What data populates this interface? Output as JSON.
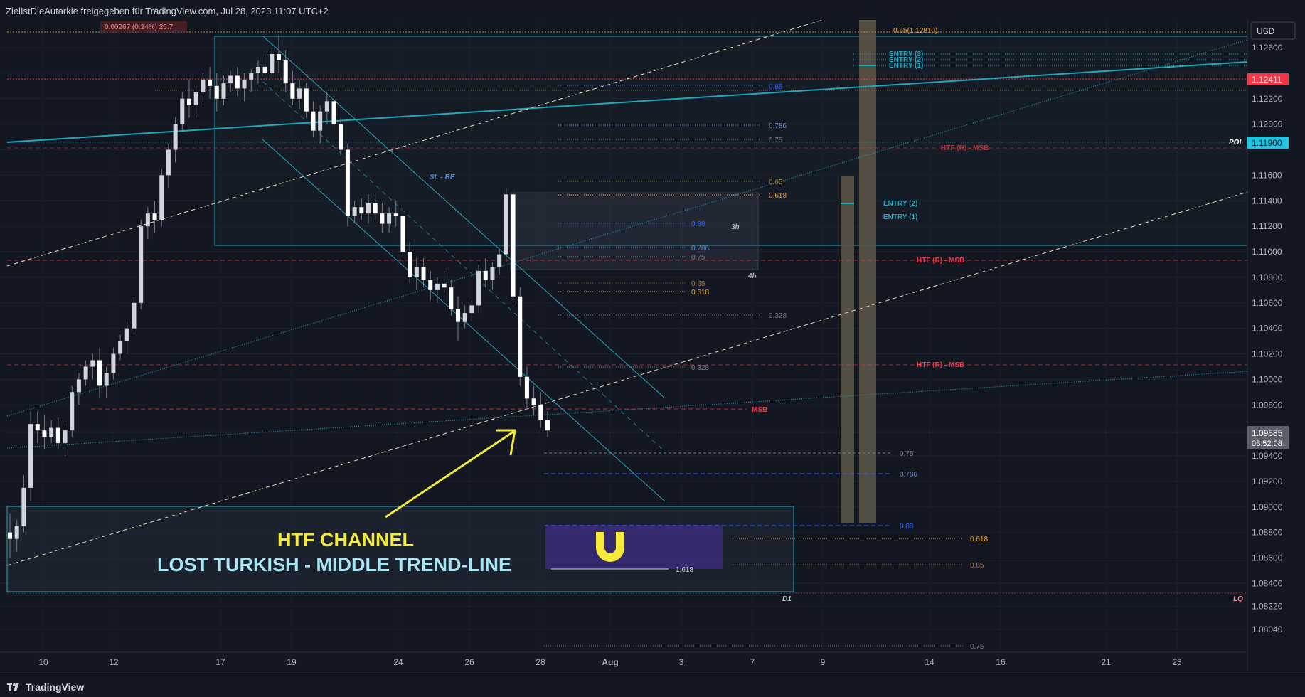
{
  "header": {
    "title": "ZielIstDieAutarkie freigegeben für TradingView.com, Jul 28, 2023 11:07 UTC+2",
    "measure": "0.00267 (0.24%) 26.7"
  },
  "price_axis": {
    "currency": "USD",
    "ticks": [
      "1.12600",
      "1.12400",
      "1.12200",
      "1.12000",
      "1.11800",
      "1.11600",
      "1.11400",
      "1.11200",
      "1.11000",
      "1.10800",
      "1.10600",
      "1.10400",
      "1.10200",
      "1.10000",
      "1.09800",
      "1.09600",
      "1.09400",
      "1.09200",
      "1.09000",
      "1.08800",
      "1.08600",
      "1.08400",
      "1.08220",
      "1.08040"
    ],
    "red_label": "1.12411",
    "poi_label": "1.11900",
    "poi_text": "POI",
    "current_price": "1.09585",
    "countdown": "03:52:08"
  },
  "time_axis": {
    "ticks": [
      "10",
      "12",
      "17",
      "19",
      "24",
      "26",
      "28",
      "Aug",
      "3",
      "7",
      "9",
      "14",
      "16",
      "21",
      "23"
    ]
  },
  "annotations": {
    "fib_top": "0.65(1.12810)",
    "entry_3": "ENTRY (3)",
    "entry_2_top": "ENTRY (2)",
    "entry_1_top": "ENTRY (1)",
    "entry_2": "ENTRY (2)",
    "entry_1": "ENTRY (1)",
    "sl_be": "SL - BE",
    "htf_msb_1": "HTF (R) - MSB",
    "htf_msb_2": "HTF (R) - MSB",
    "htf_msb_3": "HTF (R) - MSB",
    "msb": "MSB",
    "label_3h": "3h",
    "label_4h": "4h",
    "label_d1": "D1",
    "label_lq": "LQ",
    "fib_088_a": "0.88",
    "fib_0786_a": "0.786",
    "fib_075_a": "0.75",
    "fib_065_a": "0.65",
    "fib_0618_a": "0.618",
    "fib_088_b": "0.88",
    "fib_0786_b": "0.786",
    "fib_075_b": "0.75",
    "fib_065_b": "0.65",
    "fib_0618_b": "0.618",
    "fib_0328_a": "0.328",
    "fib_0328_b": "0.328",
    "fib_075_c": "0.75",
    "fib_0786_c": "0.786",
    "fib_088_c": "0.88",
    "fib_0618_c": "0.618",
    "fib_065_c": "0.65",
    "fib_1618": "1.618",
    "fib_075_d": "0.75",
    "headline_1": "HTF CHANNEL",
    "headline_2": "LOST TURKISH - MIDDLE TREND-LINE"
  },
  "footer": {
    "brand": "TradingView"
  },
  "colors": {
    "background": "#131722",
    "up_candle": "#d1d4dc",
    "down_candle": "#ffffff",
    "red": "#f23645",
    "teal": "#22a7bd",
    "orange": "#f7a325",
    "blue": "#2962ff",
    "yellow": "#f5e93a",
    "purple": "#3a2b7a"
  },
  "chart_data": {
    "type": "candlestick",
    "symbol_currency": "USD",
    "price_range": [
      1.0795,
      1.128
    ],
    "x_tick_labels": [
      "10",
      "12",
      "17",
      "19",
      "24",
      "26",
      "28",
      "Aug",
      "3",
      "7",
      "9",
      "14",
      "16",
      "21",
      "23"
    ],
    "key_levels": {
      "red_dotted": 1.12411,
      "poi": 1.119,
      "current": 1.09585,
      "fib_065_top": 1.1281
    },
    "candles": [
      [
        1.088,
        1.0895,
        1.086,
        1.0875
      ],
      [
        1.0875,
        1.089,
        1.0865,
        1.0885
      ],
      [
        1.0885,
        1.0925,
        1.088,
        1.0915
      ],
      [
        1.0915,
        1.0975,
        1.0905,
        1.0965
      ],
      [
        1.0965,
        1.0975,
        1.095,
        1.096
      ],
      [
        1.096,
        1.0972,
        1.0945,
        1.0955
      ],
      [
        1.0955,
        1.0968,
        1.095,
        1.0962
      ],
      [
        1.0962,
        1.097,
        1.0945,
        1.095
      ],
      [
        1.095,
        1.0965,
        1.094,
        1.096
      ],
      [
        1.096,
        1.0995,
        1.0955,
        1.099
      ],
      [
        1.099,
        1.1005,
        1.098,
        1.1
      ],
      [
        1.1,
        1.1015,
        1.0995,
        1.101
      ],
      [
        1.101,
        1.102,
        1.1,
        1.1015
      ],
      [
        1.1015,
        1.1025,
        1.0985,
        1.0995
      ],
      [
        1.0995,
        1.101,
        1.0985,
        1.1005
      ],
      [
        1.1005,
        1.1025,
        1.1,
        1.102
      ],
      [
        1.102,
        1.1035,
        1.1015,
        1.103
      ],
      [
        1.103,
        1.1045,
        1.102,
        1.104
      ],
      [
        1.104,
        1.1065,
        1.1035,
        1.106
      ],
      [
        1.106,
        1.1125,
        1.1055,
        1.112
      ],
      [
        1.112,
        1.1135,
        1.111,
        1.113
      ],
      [
        1.113,
        1.114,
        1.1115,
        1.1125
      ],
      [
        1.1125,
        1.1165,
        1.112,
        1.116
      ],
      [
        1.116,
        1.1185,
        1.115,
        1.118
      ],
      [
        1.118,
        1.1205,
        1.117,
        1.12
      ],
      [
        1.12,
        1.1225,
        1.1195,
        1.122
      ],
      [
        1.122,
        1.1235,
        1.1205,
        1.1215
      ],
      [
        1.1215,
        1.123,
        1.1205,
        1.1225
      ],
      [
        1.1225,
        1.124,
        1.1215,
        1.1235
      ],
      [
        1.1235,
        1.1245,
        1.122,
        1.123
      ],
      [
        1.123,
        1.124,
        1.121,
        1.122
      ],
      [
        1.122,
        1.1238,
        1.1215,
        1.1232
      ],
      [
        1.1232,
        1.1242,
        1.1225,
        1.1238
      ],
      [
        1.1238,
        1.1245,
        1.1222,
        1.1228
      ],
      [
        1.1228,
        1.124,
        1.1218,
        1.1235
      ],
      [
        1.1235,
        1.1243,
        1.1225,
        1.124
      ],
      [
        1.124,
        1.125,
        1.1232,
        1.1245
      ],
      [
        1.1245,
        1.1255,
        1.1235,
        1.124
      ],
      [
        1.124,
        1.126,
        1.1235,
        1.1255
      ],
      [
        1.1255,
        1.127,
        1.124,
        1.125
      ],
      [
        1.125,
        1.1258,
        1.1225,
        1.1232
      ],
      [
        1.1232,
        1.1242,
        1.1215,
        1.122
      ],
      [
        1.122,
        1.1235,
        1.1212,
        1.1228
      ],
      [
        1.1228,
        1.1232,
        1.1205,
        1.121
      ],
      [
        1.121,
        1.1218,
        1.119,
        1.1195
      ],
      [
        1.1195,
        1.1215,
        1.1185,
        1.121
      ],
      [
        1.121,
        1.1225,
        1.12,
        1.1218
      ],
      [
        1.1218,
        1.1222,
        1.1195,
        1.12
      ],
      [
        1.12,
        1.1205,
        1.1175,
        1.118
      ],
      [
        1.118,
        1.1185,
        1.112,
        1.1128
      ],
      [
        1.1128,
        1.114,
        1.1122,
        1.1135
      ],
      [
        1.1135,
        1.1142,
        1.1125,
        1.113
      ],
      [
        1.113,
        1.1145,
        1.1122,
        1.1138
      ],
      [
        1.1138,
        1.1145,
        1.1125,
        1.113
      ],
      [
        1.113,
        1.1138,
        1.1115,
        1.1122
      ],
      [
        1.1122,
        1.1135,
        1.1115,
        1.113
      ],
      [
        1.113,
        1.114,
        1.112,
        1.1128
      ],
      [
        1.1128,
        1.1135,
        1.1095,
        1.11
      ],
      [
        1.11,
        1.1108,
        1.1075,
        1.108
      ],
      [
        1.108,
        1.1095,
        1.107,
        1.1088
      ],
      [
        1.1088,
        1.1095,
        1.1072,
        1.1078
      ],
      [
        1.1078,
        1.1085,
        1.1062,
        1.107
      ],
      [
        1.107,
        1.108,
        1.106,
        1.1075
      ],
      [
        1.1075,
        1.1085,
        1.1068,
        1.1072
      ],
      [
        1.1072,
        1.1078,
        1.105,
        1.1055
      ],
      [
        1.1055,
        1.1065,
        1.103,
        1.1045
      ],
      [
        1.1045,
        1.1058,
        1.104,
        1.1052
      ],
      [
        1.1052,
        1.1062,
        1.1045,
        1.1058
      ],
      [
        1.1058,
        1.109,
        1.1052,
        1.1085
      ],
      [
        1.1085,
        1.1095,
        1.1072,
        1.1078
      ],
      [
        1.1078,
        1.1092,
        1.107,
        1.1088
      ],
      [
        1.1088,
        1.1102,
        1.1082,
        1.1098
      ],
      [
        1.1098,
        1.115,
        1.1092,
        1.1145
      ],
      [
        1.1145,
        1.115,
        1.106,
        1.1065
      ],
      [
        1.1065,
        1.1072,
        1.0995,
        1.1002
      ],
      [
        1.1002,
        1.101,
        1.0978,
        1.0985
      ],
      [
        1.0985,
        1.0995,
        1.0972,
        1.098
      ],
      [
        1.098,
        1.099,
        1.0962,
        1.0968
      ],
      [
        1.0968,
        1.0975,
        1.0955,
        1.096
      ]
    ],
    "dates_marked": [
      "Jul 10",
      "Jul 12",
      "Jul 17",
      "Jul 19",
      "Jul 24",
      "Jul 26",
      "Jul 28",
      "Aug 1",
      "Aug 3",
      "Aug 7",
      "Aug 9",
      "Aug 14",
      "Aug 16",
      "Aug 21",
      "Aug 23"
    ]
  }
}
